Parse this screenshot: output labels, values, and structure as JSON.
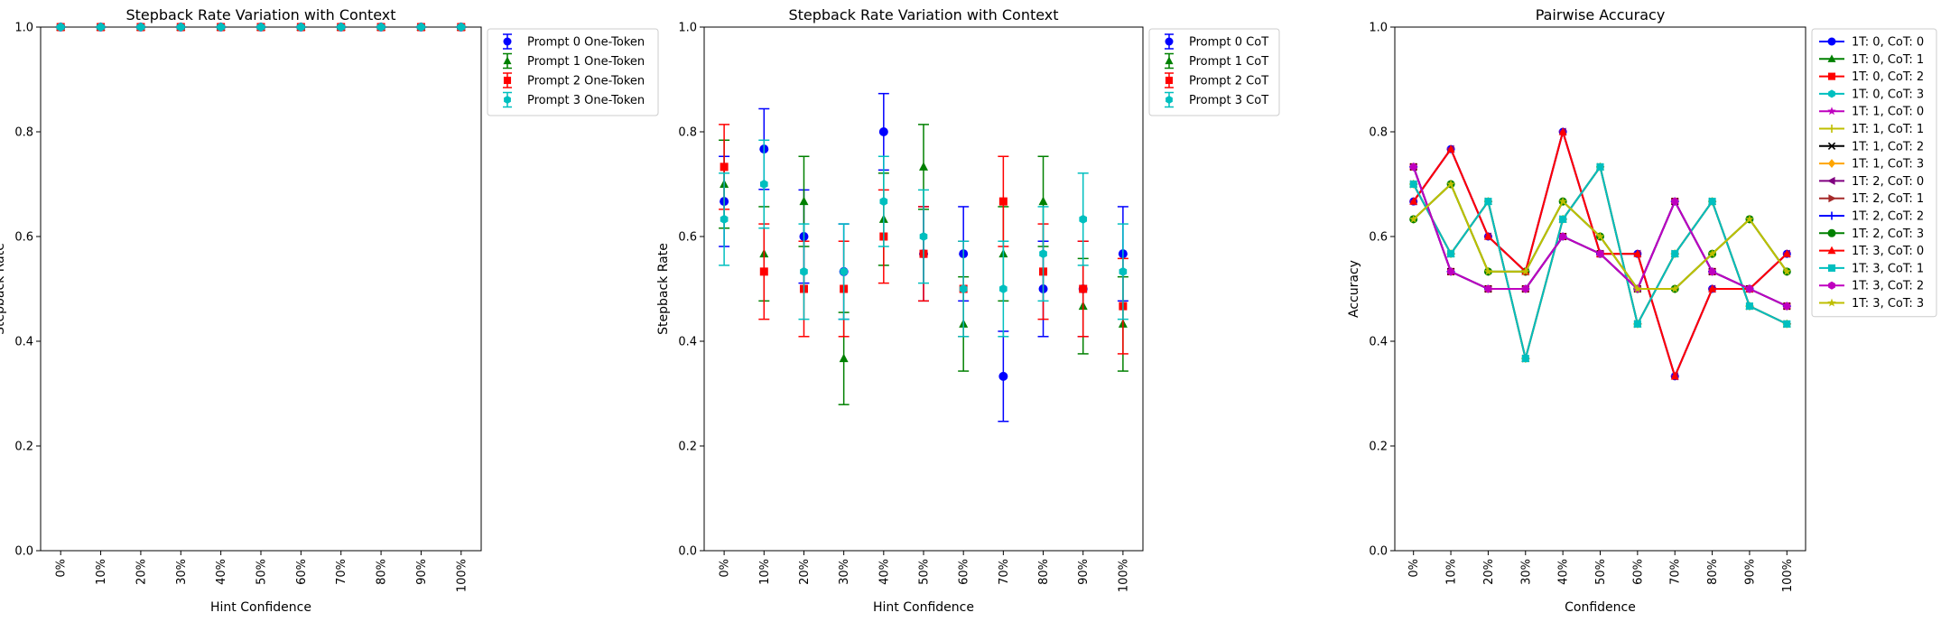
{
  "x_categories": [
    "0%",
    "10%",
    "20%",
    "30%",
    "40%",
    "50%",
    "60%",
    "70%",
    "80%",
    "90%",
    "100%"
  ],
  "chart_data": [
    {
      "type": "scatter",
      "title": "Stepback Rate Variation with Context",
      "xlabel": "Hint Confidence",
      "ylabel": "Stepback Rate",
      "ylim": [
        0,
        1
      ],
      "yticks": [
        "0.0",
        "0.2",
        "0.4",
        "0.6",
        "0.8",
        "1.0"
      ],
      "legend_position": "outside-right",
      "error_bars": true,
      "series": [
        {
          "name": "Prompt 0 One-Token",
          "color": "#0000ff",
          "marker": "circle",
          "values": [
            1,
            1,
            1,
            1,
            1,
            1,
            1,
            1,
            1,
            1,
            1
          ],
          "err": [
            0,
            0,
            0,
            0,
            0,
            0,
            0,
            0,
            0,
            0,
            0
          ]
        },
        {
          "name": "Prompt 1 One-Token",
          "color": "#008000",
          "marker": "triangle",
          "values": [
            1,
            1,
            1,
            1,
            1,
            1,
            1,
            1,
            1,
            1,
            1
          ],
          "err": [
            0,
            0,
            0,
            0,
            0,
            0,
            0,
            0,
            0,
            0,
            0
          ]
        },
        {
          "name": "Prompt 2 One-Token",
          "color": "#ff0000",
          "marker": "square",
          "values": [
            1,
            1,
            1,
            1,
            1,
            1,
            1,
            1,
            1,
            1,
            1
          ],
          "err": [
            0,
            0,
            0,
            0,
            0,
            0,
            0,
            0,
            0,
            0,
            0
          ]
        },
        {
          "name": "Prompt 3 One-Token",
          "color": "#00bfbf",
          "marker": "hexagon",
          "values": [
            1,
            1,
            1,
            1,
            1,
            1,
            1,
            1,
            1,
            1,
            1
          ],
          "err": [
            0,
            0,
            0,
            0,
            0,
            0,
            0,
            0,
            0,
            0,
            0
          ]
        }
      ]
    },
    {
      "type": "scatter",
      "title": "Stepback Rate Variation with Context",
      "xlabel": "Hint Confidence",
      "ylabel": "Stepback Rate",
      "ylim": [
        0,
        1
      ],
      "yticks": [
        "0.0",
        "0.2",
        "0.4",
        "0.6",
        "0.8",
        "1.0"
      ],
      "legend_position": "outside-right",
      "error_bars": true,
      "series": [
        {
          "name": "Prompt 0 CoT",
          "color": "#0000ff",
          "marker": "circle",
          "values": [
            0.667,
            0.767,
            0.6,
            0.533,
            0.8,
            0.567,
            0.567,
            0.333,
            0.5,
            0.5,
            0.567
          ],
          "err": [
            0.086,
            0.077,
            0.089,
            0.091,
            0.073,
            0.09,
            0.09,
            0.086,
            0.091,
            0.091,
            0.09
          ]
        },
        {
          "name": "Prompt 1 CoT",
          "color": "#008000",
          "marker": "triangle",
          "values": [
            0.7,
            0.567,
            0.667,
            0.367,
            0.633,
            0.733,
            0.433,
            0.567,
            0.667,
            0.467,
            0.433
          ],
          "err": [
            0.084,
            0.09,
            0.086,
            0.088,
            0.088,
            0.081,
            0.09,
            0.09,
            0.086,
            0.091,
            0.09
          ]
        },
        {
          "name": "Prompt 2 CoT",
          "color": "#ff0000",
          "marker": "square",
          "values": [
            0.733,
            0.533,
            0.5,
            0.5,
            0.6,
            0.567,
            0.5,
            0.667,
            0.533,
            0.5,
            0.467
          ],
          "err": [
            0.081,
            0.091,
            0.091,
            0.091,
            0.089,
            0.09,
            0.091,
            0.086,
            0.091,
            0.091,
            0.091
          ]
        },
        {
          "name": "Prompt 3 CoT",
          "color": "#00bfbf",
          "marker": "hexagon",
          "values": [
            0.633,
            0.7,
            0.533,
            0.533,
            0.667,
            0.6,
            0.5,
            0.5,
            0.567,
            0.633,
            0.533
          ],
          "err": [
            0.088,
            0.084,
            0.091,
            0.091,
            0.086,
            0.089,
            0.091,
            0.091,
            0.09,
            0.088,
            0.091
          ]
        }
      ]
    },
    {
      "type": "line",
      "title": "Pairwise Accuracy",
      "xlabel": "Confidence",
      "ylabel": "Accuracy",
      "ylim": [
        0,
        1
      ],
      "yticks": [
        "0.0",
        "0.2",
        "0.4",
        "0.6",
        "0.8",
        "1.0"
      ],
      "legend_position": "outside-right",
      "series": [
        {
          "name": "1T: 0, CoT: 0",
          "color": "#0000ff",
          "marker": "circle",
          "values": [
            0.667,
            0.767,
            0.6,
            0.533,
            0.8,
            0.567,
            0.567,
            0.333,
            0.5,
            0.5,
            0.567
          ]
        },
        {
          "name": "1T: 0, CoT: 1",
          "color": "#008000",
          "marker": "triangle",
          "values": [
            0.7,
            0.567,
            0.667,
            0.367,
            0.633,
            0.733,
            0.433,
            0.567,
            0.667,
            0.467,
            0.433
          ]
        },
        {
          "name": "1T: 0, CoT: 2",
          "color": "#ff0000",
          "marker": "square",
          "values": [
            0.733,
            0.533,
            0.5,
            0.5,
            0.6,
            0.567,
            0.5,
            0.667,
            0.533,
            0.5,
            0.467
          ]
        },
        {
          "name": "1T: 0, CoT: 3",
          "color": "#00bfbf",
          "marker": "hexagon",
          "values": [
            0.633,
            0.7,
            0.533,
            0.533,
            0.667,
            0.6,
            0.5,
            0.5,
            0.567,
            0.633,
            0.533
          ]
        },
        {
          "name": "1T: 1, CoT: 0",
          "color": "#bf00bf",
          "marker": "star",
          "values": [
            0.667,
            0.767,
            0.6,
            0.533,
            0.8,
            0.567,
            0.567,
            0.333,
            0.5,
            0.5,
            0.567
          ]
        },
        {
          "name": "1T: 1, CoT: 1",
          "color": "#bfbf00",
          "marker": "plus",
          "values": [
            0.7,
            0.567,
            0.667,
            0.367,
            0.633,
            0.733,
            0.433,
            0.567,
            0.667,
            0.467,
            0.433
          ]
        },
        {
          "name": "1T: 1, CoT: 2",
          "color": "#000000",
          "marker": "x",
          "values": [
            0.733,
            0.533,
            0.5,
            0.5,
            0.6,
            0.567,
            0.5,
            0.667,
            0.533,
            0.5,
            0.467
          ]
        },
        {
          "name": "1T: 1, CoT: 3",
          "color": "#ffa500",
          "marker": "diamond",
          "values": [
            0.633,
            0.7,
            0.533,
            0.533,
            0.667,
            0.6,
            0.5,
            0.5,
            0.567,
            0.633,
            0.533
          ]
        },
        {
          "name": "1T: 2, CoT: 0",
          "color": "#800080",
          "marker": "tri-left",
          "values": [
            0.667,
            0.767,
            0.6,
            0.533,
            0.8,
            0.567,
            0.567,
            0.333,
            0.5,
            0.5,
            0.567
          ]
        },
        {
          "name": "1T: 2, CoT: 1",
          "color": "#a52a2a",
          "marker": "tri-right",
          "values": [
            0.7,
            0.567,
            0.667,
            0.367,
            0.633,
            0.733,
            0.433,
            0.567,
            0.667,
            0.467,
            0.433
          ]
        },
        {
          "name": "1T: 2, CoT: 2",
          "color": "#0000ff",
          "marker": "plus",
          "values": [
            0.733,
            0.533,
            0.5,
            0.5,
            0.6,
            0.567,
            0.5,
            0.667,
            0.533,
            0.5,
            0.467
          ]
        },
        {
          "name": "1T: 2, CoT: 3",
          "color": "#008000",
          "marker": "circle",
          "values": [
            0.633,
            0.7,
            0.533,
            0.533,
            0.667,
            0.6,
            0.5,
            0.5,
            0.567,
            0.633,
            0.533
          ]
        },
        {
          "name": "1T: 3, CoT: 0",
          "color": "#ff0000",
          "marker": "triangle",
          "values": [
            0.667,
            0.767,
            0.6,
            0.533,
            0.8,
            0.567,
            0.567,
            0.333,
            0.5,
            0.5,
            0.567
          ]
        },
        {
          "name": "1T: 3, CoT: 1",
          "color": "#00bfbf",
          "marker": "square",
          "values": [
            0.7,
            0.567,
            0.667,
            0.367,
            0.633,
            0.733,
            0.433,
            0.567,
            0.667,
            0.467,
            0.433
          ]
        },
        {
          "name": "1T: 3, CoT: 2",
          "color": "#bf00bf",
          "marker": "hexagon",
          "values": [
            0.733,
            0.533,
            0.5,
            0.5,
            0.6,
            0.567,
            0.5,
            0.667,
            0.533,
            0.5,
            0.467
          ]
        },
        {
          "name": "1T: 3, CoT: 3",
          "color": "#bfbf00",
          "marker": "star",
          "values": [
            0.633,
            0.7,
            0.533,
            0.533,
            0.667,
            0.6,
            0.5,
            0.5,
            0.567,
            0.633,
            0.533
          ]
        }
      ]
    }
  ]
}
